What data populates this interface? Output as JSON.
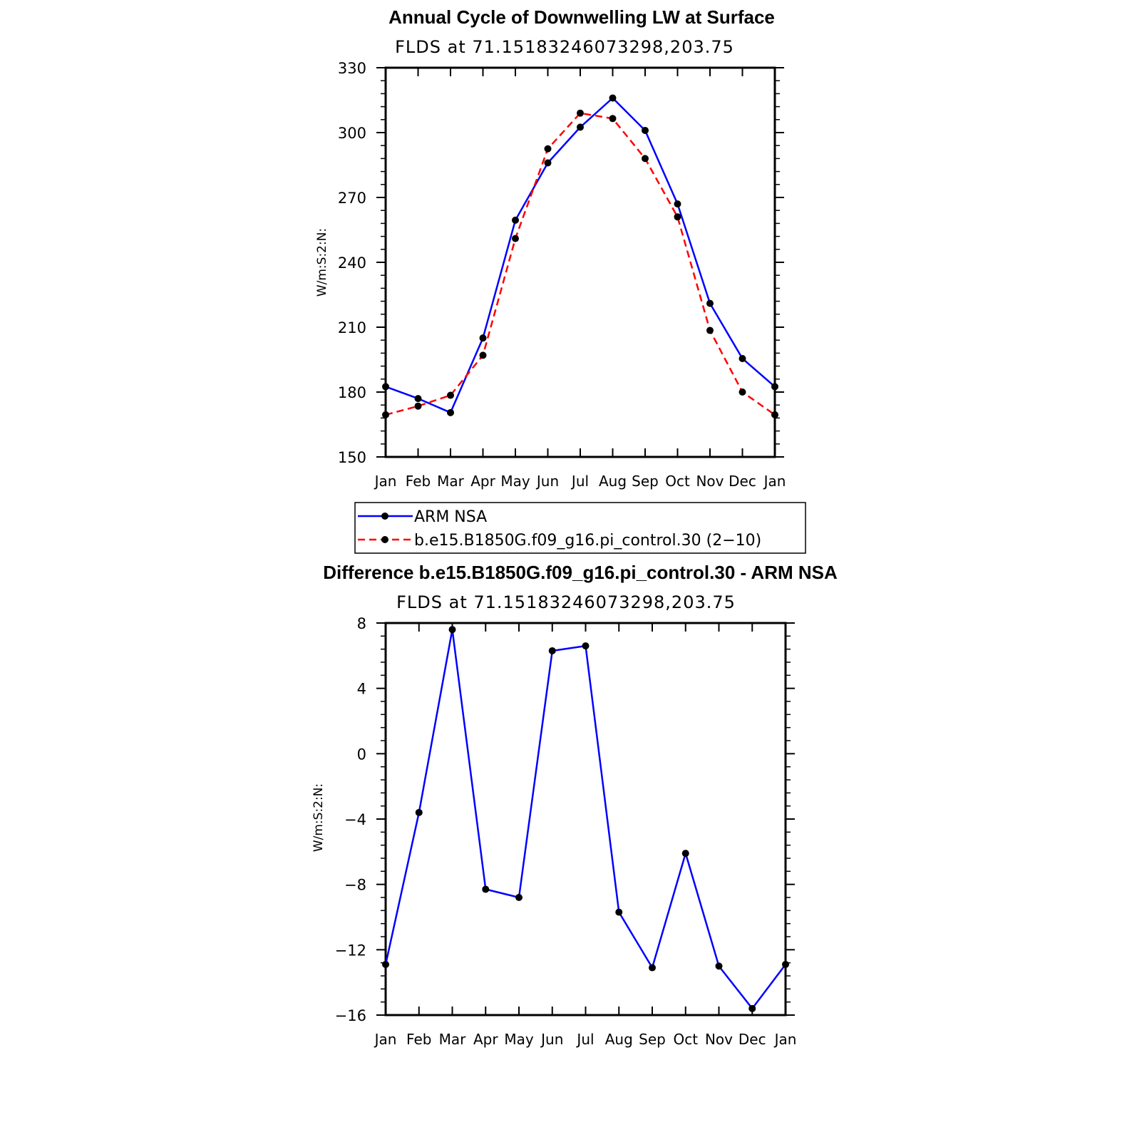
{
  "chart_data": [
    {
      "type": "line",
      "title": "Annual Cycle of Downwelling LW at Surface",
      "subtitle": "FLDS at 71.15183246073298,203.75",
      "ylabel": "W/m:S:2:N:",
      "xlabel": "",
      "categories": [
        "Jan",
        "Feb",
        "Mar",
        "Apr",
        "May",
        "Jun",
        "Jul",
        "Aug",
        "Sep",
        "Oct",
        "Nov",
        "Dec",
        "Jan"
      ],
      "ylim": [
        150,
        330
      ],
      "yticks": [
        150,
        180,
        210,
        240,
        270,
        300,
        330
      ],
      "series": [
        {
          "name": "ARM NSA",
          "color": "#0000ff",
          "dash": "solid",
          "values": [
            182.5,
            177,
            170.5,
            205,
            259.5,
            286,
            302.5,
            316,
            301,
            267,
            221,
            195.5,
            182.5
          ]
        },
        {
          "name": "b.e15.B1850G.f09_g16.pi_control.30 (2−10)",
          "color": "#ff0000",
          "dash": "dashed",
          "values": [
            169.5,
            173.5,
            178.5,
            197,
            251,
            292.5,
            309,
            306.5,
            288,
            261,
            208.5,
            180,
            169.5
          ]
        }
      ],
      "legend": "below"
    },
    {
      "type": "line",
      "title": "Difference b.e15.B1850G.f09_g16.pi_control.30 - ARM NSA",
      "subtitle": "FLDS at 71.15183246073298,203.75",
      "ylabel": "W/m:S:2:N:",
      "xlabel": "",
      "categories": [
        "Jan",
        "Feb",
        "Mar",
        "Apr",
        "May",
        "Jun",
        "Jul",
        "Aug",
        "Sep",
        "Oct",
        "Nov",
        "Dec",
        "Jan"
      ],
      "ylim": [
        -16,
        8
      ],
      "yticks": [
        -16,
        -12,
        -8,
        -4,
        0,
        4,
        8
      ],
      "ytick_labels": [
        "−16",
        "−12",
        "−8",
        "−4",
        "0",
        "4",
        "8"
      ],
      "series": [
        {
          "name": "",
          "color": "#0000ff",
          "dash": "solid",
          "values": [
            -12.9,
            -3.6,
            7.6,
            -8.3,
            -8.8,
            6.3,
            6.6,
            -9.7,
            -13.1,
            -6.1,
            -13,
            -15.6,
            -12.9
          ]
        }
      ]
    }
  ]
}
